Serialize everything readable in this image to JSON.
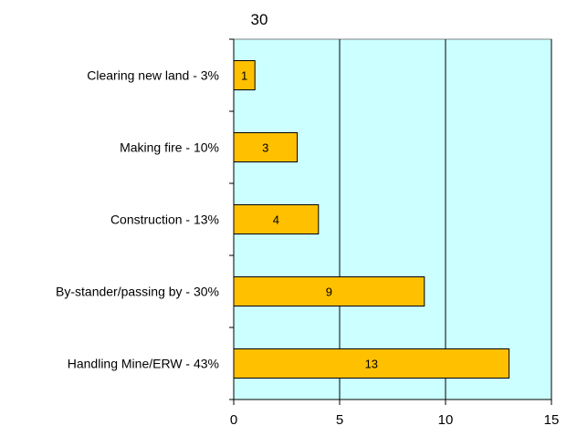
{
  "chart_data": {
    "type": "bar",
    "orientation": "horizontal",
    "title": "30",
    "xlabel": "",
    "ylabel": "",
    "categories": [
      "Clearing new land  - 3%",
      "Making fire - 10%",
      "Construction - 13%",
      "By-stander/passing by - 30%",
      "Handling Mine/ERW - 43%"
    ],
    "values": [
      1,
      3,
      4,
      9,
      13
    ],
    "data_labels": [
      "1",
      "3",
      "4",
      "9",
      "13"
    ],
    "xlim": [
      0,
      15
    ],
    "xticks": [
      0,
      5,
      10,
      15
    ],
    "xtick_labels": [
      "0",
      "5",
      "10",
      "15"
    ],
    "grid": true,
    "legend": "none",
    "colors": {
      "bar_fill": "#FFC000",
      "bar_stroke": "#000000",
      "plot_background": "#CCFFFF",
      "gridline": "#000000"
    }
  }
}
